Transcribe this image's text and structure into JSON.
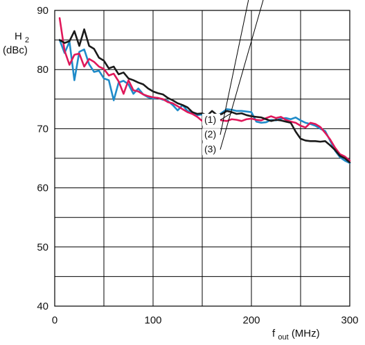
{
  "chart_data": {
    "type": "line",
    "ylabel_main": "H",
    "ylabel_sub": "2",
    "ylabel_unit": "(dBc)",
    "xlabel_main": "f",
    "xlabel_sub": "out",
    "xlabel_unit": " (MHz)",
    "xlim": [
      0,
      300
    ],
    "ylim": [
      40,
      90
    ],
    "xticks": [
      0,
      100,
      200,
      300
    ],
    "yticks": [
      40,
      50,
      60,
      70,
      80,
      90
    ],
    "grid_x_step": 50,
    "grid_y_step": 5,
    "grid": true,
    "series": [
      {
        "name": "(1)",
        "color": "#1a1a1a",
        "x": [
          5,
          10,
          15,
          20,
          25,
          30,
          35,
          40,
          45,
          50,
          55,
          60,
          65,
          70,
          75,
          80,
          85,
          90,
          95,
          100,
          105,
          110,
          115,
          120,
          125,
          130,
          135,
          140,
          145,
          150,
          155,
          160,
          165,
          170,
          175,
          180,
          185,
          190,
          195,
          200,
          205,
          210,
          215,
          220,
          225,
          230,
          235,
          240,
          245,
          250,
          255,
          260,
          265,
          270,
          275,
          280,
          285,
          290,
          295,
          300
        ],
        "values": [
          85.0,
          84.5,
          84.8,
          86.5,
          84.0,
          86.8,
          84.0,
          83.5,
          82.0,
          81.5,
          80.2,
          80.5,
          79.2,
          79.5,
          78.5,
          78.2,
          77.8,
          77.5,
          76.8,
          76.3,
          76.0,
          75.8,
          75.2,
          74.8,
          74.3,
          74.0,
          73.6,
          72.8,
          72.5,
          72.6,
          72.2,
          73.0,
          72.3,
          72.5,
          73.0,
          72.8,
          72.5,
          72.6,
          72.3,
          72.1,
          72.0,
          71.9,
          71.6,
          71.3,
          71.5,
          71.4,
          71.2,
          71.0,
          69.5,
          68.3,
          68.0,
          67.9,
          67.9,
          67.8,
          67.9,
          67.2,
          66.4,
          65.4,
          65.0,
          64.3
        ]
      },
      {
        "name": "(2)",
        "color": "#1f8bc9",
        "x": [
          5,
          10,
          15,
          20,
          25,
          30,
          35,
          40,
          45,
          50,
          55,
          60,
          65,
          70,
          75,
          80,
          85,
          90,
          95,
          100,
          105,
          110,
          115,
          120,
          125,
          130,
          135,
          140,
          145,
          150,
          155,
          160,
          165,
          170,
          175,
          180,
          185,
          190,
          195,
          200,
          205,
          210,
          215,
          220,
          225,
          230,
          235,
          240,
          245,
          250,
          255,
          260,
          265,
          270,
          275,
          280,
          285,
          290,
          295,
          300
        ],
        "values": [
          85.0,
          82.8,
          84.7,
          78.2,
          83.0,
          83.4,
          80.9,
          79.6,
          79.8,
          78.5,
          78.2,
          74.8,
          77.8,
          78.1,
          77.5,
          75.9,
          76.8,
          75.8,
          75.3,
          75.1,
          75.2,
          74.9,
          74.7,
          74.0,
          73.1,
          74.0,
          73.0,
          72.8,
          72.3,
          72.4,
          72.0,
          72.3,
          72.1,
          72.7,
          73.3,
          73.2,
          73.0,
          73.0,
          72.9,
          72.8,
          71.2,
          71.0,
          71.1,
          71.5,
          71.4,
          71.7,
          71.8,
          71.6,
          71.9,
          71.4,
          71.0,
          70.8,
          70.5,
          70.0,
          69.6,
          68.0,
          66.3,
          65.2,
          64.6,
          64.2
        ]
      },
      {
        "name": "(3)",
        "color": "#e0185a",
        "x": [
          5,
          10,
          15,
          20,
          25,
          30,
          35,
          40,
          45,
          50,
          55,
          60,
          65,
          70,
          75,
          80,
          85,
          90,
          95,
          100,
          105,
          110,
          115,
          120,
          125,
          130,
          135,
          140,
          145,
          150,
          155,
          160,
          165,
          170,
          175,
          180,
          185,
          190,
          195,
          200,
          205,
          210,
          215,
          220,
          225,
          230,
          235,
          240,
          245,
          250,
          255,
          260,
          265,
          270,
          275,
          280,
          285,
          290,
          295,
          300
        ],
        "values": [
          88.7,
          83.2,
          80.8,
          82.5,
          82.7,
          80.5,
          81.8,
          81.3,
          80.5,
          80.1,
          79.0,
          79.3,
          78.0,
          75.9,
          78.2,
          76.5,
          76.3,
          75.8,
          75.5,
          75.3,
          75.2,
          75.0,
          74.5,
          74.3,
          73.8,
          73.3,
          72.8,
          72.5,
          72.0,
          71.3,
          71.5,
          71.3,
          71.6,
          71.4,
          71.3,
          71.6,
          71.5,
          71.3,
          71.6,
          71.7,
          71.5,
          71.4,
          71.8,
          72.1,
          71.8,
          72.0,
          71.5,
          71.2,
          71.0,
          70.5,
          70.2,
          71.0,
          70.8,
          70.3,
          69.3,
          68.2,
          66.8,
          65.7,
          65.3,
          64.6
        ]
      }
    ],
    "annotations": {
      "series_callout_labels": [
        "(1)",
        "(2)",
        "(3)"
      ]
    }
  }
}
